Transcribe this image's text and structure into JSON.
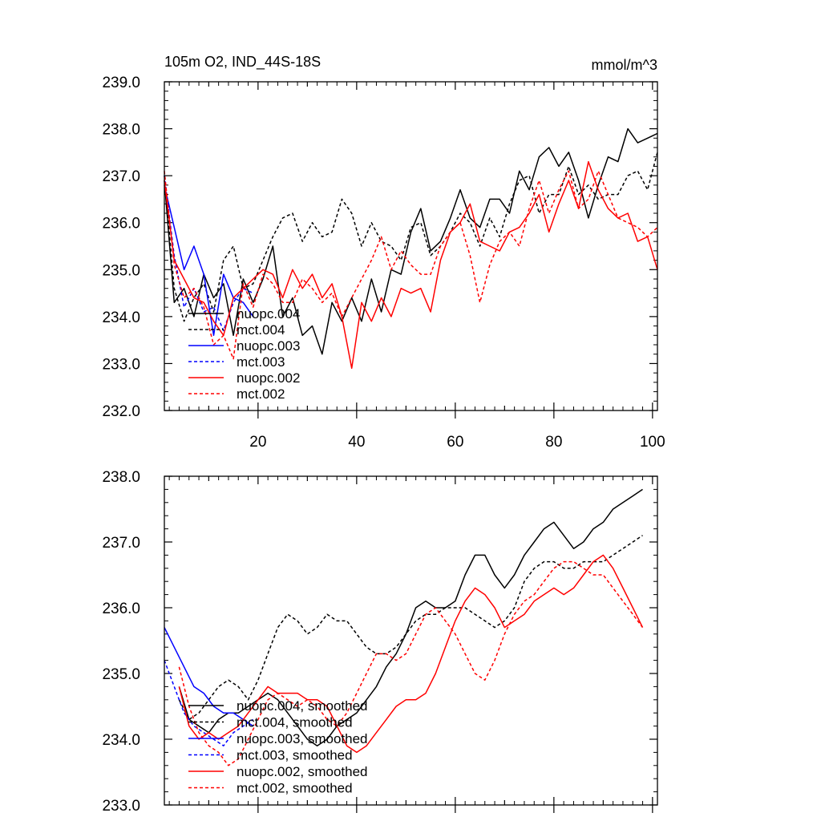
{
  "chart_data": [
    {
      "type": "line",
      "title_left": "105m O2, IND_44S-18S",
      "title_right": "mmol/m^3",
      "xlabel": "",
      "ylabel": "",
      "xlim": [
        1,
        101
      ],
      "ylim": [
        232.0,
        239.0
      ],
      "xticks": [
        20,
        40,
        60,
        80,
        100
      ],
      "xtick_labels": [
        "20",
        "40",
        "60",
        "80",
        "100"
      ],
      "yticks": [
        232.0,
        233.0,
        234.0,
        235.0,
        236.0,
        237.0,
        238.0,
        239.0
      ],
      "ytick_labels": [
        "232.0",
        "233.0",
        "234.0",
        "235.0",
        "236.0",
        "237.0",
        "238.0",
        "239.0"
      ],
      "legend_position": "lower-left",
      "series": [
        {
          "name": "nuopc.004",
          "color": "#000000",
          "dash": "solid",
          "x": [
            1,
            3,
            5,
            7,
            9,
            11,
            13,
            15,
            17,
            19,
            21,
            23,
            25,
            27,
            29,
            31,
            33,
            35,
            37,
            39,
            41,
            43,
            45,
            47,
            49,
            51,
            53,
            55,
            57,
            59,
            61,
            63,
            65,
            67,
            69,
            71,
            73,
            75,
            77,
            79,
            81,
            83,
            85,
            87,
            89,
            91,
            93,
            95,
            97,
            99,
            101
          ],
          "y": [
            236.9,
            234.3,
            234.6,
            234.0,
            234.9,
            234.4,
            234.7,
            233.6,
            234.8,
            234.3,
            234.8,
            235.5,
            234.0,
            234.4,
            233.6,
            233.8,
            233.2,
            234.3,
            233.9,
            234.4,
            233.9,
            234.8,
            234.1,
            235.0,
            234.9,
            235.8,
            236.3,
            235.4,
            235.6,
            236.1,
            236.7,
            236.1,
            235.9,
            236.5,
            236.5,
            236.2,
            237.1,
            236.7,
            237.4,
            237.6,
            237.2,
            237.5,
            236.9,
            236.1,
            236.8,
            237.4,
            237.3,
            238.0,
            237.7,
            237.8,
            237.9
          ]
        },
        {
          "name": "mct.004",
          "color": "#000000",
          "dash": "dashed",
          "x": [
            1,
            3,
            5,
            7,
            9,
            11,
            13,
            15,
            17,
            19,
            21,
            23,
            25,
            27,
            29,
            31,
            33,
            35,
            37,
            39,
            41,
            43,
            45,
            47,
            49,
            51,
            53,
            55,
            57,
            59,
            61,
            63,
            65,
            67,
            69,
            71,
            73,
            75,
            77,
            79,
            81,
            83,
            85,
            87,
            89,
            91,
            93,
            95,
            97,
            99,
            101
          ],
          "y": [
            237.0,
            234.6,
            233.9,
            234.4,
            234.7,
            234.1,
            235.2,
            235.5,
            234.6,
            234.7,
            235.2,
            235.7,
            236.1,
            236.2,
            235.6,
            236.0,
            235.7,
            235.8,
            236.5,
            236.2,
            235.5,
            236.0,
            235.6,
            235.5,
            235.2,
            235.9,
            236.0,
            235.3,
            235.5,
            235.8,
            236.2,
            236.0,
            235.5,
            236.1,
            235.7,
            236.4,
            236.9,
            237.0,
            236.2,
            236.6,
            236.6,
            237.2,
            236.6,
            236.8,
            236.5,
            236.6,
            236.6,
            237.0,
            237.1,
            236.7,
            237.5
          ]
        },
        {
          "name": "nuopc.003",
          "color": "#0000ff",
          "dash": "solid",
          "x": [
            1,
            3,
            5,
            7,
            9,
            11,
            13,
            15,
            17,
            19
          ],
          "y": [
            236.8,
            235.9,
            235.0,
            235.5,
            234.9,
            233.6,
            234.9,
            234.4,
            234.3,
            234.0
          ]
        },
        {
          "name": "mct.003",
          "color": "#0000ff",
          "dash": "dashed",
          "x": [
            1,
            3,
            5,
            7,
            9,
            11,
            13,
            15,
            17,
            19
          ],
          "y": [
            237.0,
            235.3,
            234.2,
            234.6,
            234.1,
            234.2,
            233.7,
            234.3,
            234.6,
            234.5
          ]
        },
        {
          "name": "nuopc.002",
          "color": "#ff0000",
          "dash": "solid",
          "x": [
            1,
            3,
            5,
            7,
            9,
            11,
            13,
            15,
            17,
            19,
            21,
            23,
            25,
            27,
            29,
            31,
            33,
            35,
            37,
            39,
            41,
            43,
            45,
            47,
            49,
            51,
            53,
            55,
            57,
            59,
            61,
            63,
            65,
            67,
            69,
            71,
            73,
            75,
            77,
            79,
            81,
            83,
            85,
            87,
            89,
            91,
            93,
            95,
            97,
            99,
            101
          ],
          "y": [
            236.9,
            235.2,
            234.8,
            234.4,
            234.3,
            233.9,
            233.6,
            234.4,
            234.6,
            234.8,
            235.0,
            234.9,
            234.4,
            235.0,
            234.6,
            234.9,
            234.4,
            234.7,
            234.0,
            232.9,
            234.3,
            233.9,
            234.4,
            234.0,
            234.6,
            234.5,
            234.6,
            234.1,
            235.2,
            235.8,
            236.0,
            236.4,
            235.6,
            235.5,
            235.4,
            235.8,
            235.9,
            236.2,
            236.6,
            235.8,
            236.4,
            236.9,
            236.3,
            237.3,
            236.7,
            236.3,
            236.1,
            236.2,
            235.6,
            235.7,
            235.0
          ]
        },
        {
          "name": "mct.002",
          "color": "#ff0000",
          "dash": "dashed",
          "x": [
            1,
            3,
            5,
            7,
            9,
            11,
            13,
            15,
            17,
            19,
            21,
            23,
            25,
            27,
            29,
            31,
            33,
            35,
            37,
            39,
            41,
            43,
            45,
            47,
            49,
            51,
            53,
            55,
            57,
            59,
            61,
            63,
            65,
            67,
            69,
            71,
            73,
            75,
            77,
            79,
            81,
            83,
            85,
            87,
            89,
            91,
            93,
            95,
            97,
            99,
            101
          ],
          "y": [
            237.1,
            235.1,
            234.4,
            234.6,
            234.2,
            233.4,
            233.6,
            233.1,
            234.7,
            234.2,
            234.9,
            234.7,
            234.3,
            234.3,
            234.8,
            234.6,
            234.3,
            234.5,
            234.0,
            234.4,
            234.8,
            235.2,
            235.7,
            235.0,
            235.4,
            235.1,
            234.9,
            234.9,
            235.5,
            235.8,
            236.0,
            235.3,
            234.3,
            235.1,
            235.6,
            235.8,
            235.5,
            236.3,
            236.9,
            236.2,
            236.7,
            237.1,
            236.3,
            236.5,
            237.1,
            236.6,
            236.1,
            236.0,
            235.9,
            235.7,
            235.9
          ]
        }
      ]
    },
    {
      "type": "line",
      "xlabel": "",
      "ylabel": "",
      "xlim": [
        1,
        101
      ],
      "ylim": [
        233.0,
        238.0
      ],
      "xticks": [
        20,
        40,
        60,
        80,
        100
      ],
      "yticks": [
        233.0,
        234.0,
        235.0,
        236.0,
        237.0,
        238.0
      ],
      "ytick_labels": [
        "233.0",
        "234.0",
        "235.0",
        "236.0",
        "237.0",
        "238.0"
      ],
      "legend_position": "lower-left",
      "series": [
        {
          "name": "nuopc.004, smoothed",
          "color": "#000000",
          "dash": "solid",
          "x": [
            4,
            6,
            8,
            10,
            12,
            14,
            16,
            18,
            20,
            22,
            24,
            26,
            28,
            30,
            32,
            34,
            36,
            38,
            40,
            42,
            44,
            46,
            48,
            50,
            52,
            54,
            56,
            58,
            60,
            62,
            64,
            66,
            68,
            70,
            72,
            74,
            76,
            78,
            80,
            82,
            84,
            86,
            88,
            90,
            92,
            94,
            96,
            98
          ],
          "y": [
            234.8,
            234.3,
            234.2,
            234.1,
            234.3,
            234.4,
            234.4,
            234.5,
            234.6,
            234.7,
            234.6,
            234.4,
            234.2,
            234.0,
            233.9,
            234.0,
            234.2,
            234.3,
            234.4,
            234.6,
            234.8,
            235.1,
            235.3,
            235.6,
            236.0,
            236.1,
            236.0,
            236.0,
            236.1,
            236.5,
            236.8,
            236.8,
            236.5,
            236.3,
            236.5,
            236.8,
            237.0,
            237.2,
            237.3,
            237.1,
            236.9,
            237.0,
            237.2,
            237.3,
            237.5,
            237.6,
            237.7,
            237.8
          ]
        },
        {
          "name": "mct.004, smoothed",
          "color": "#000000",
          "dash": "dashed",
          "x": [
            4,
            6,
            8,
            10,
            12,
            14,
            16,
            18,
            20,
            22,
            24,
            26,
            28,
            30,
            32,
            34,
            36,
            38,
            40,
            42,
            44,
            46,
            48,
            50,
            52,
            54,
            56,
            58,
            60,
            62,
            64,
            66,
            68,
            70,
            72,
            74,
            76,
            78,
            80,
            82,
            84,
            86,
            88,
            90,
            92,
            94,
            96,
            98
          ],
          "y": [
            234.6,
            234.3,
            234.4,
            234.6,
            234.8,
            234.9,
            234.8,
            234.6,
            234.9,
            235.3,
            235.7,
            235.9,
            235.8,
            235.6,
            235.7,
            235.9,
            235.8,
            235.8,
            235.6,
            235.4,
            235.3,
            235.3,
            235.4,
            235.6,
            235.8,
            235.9,
            235.9,
            236.0,
            236.0,
            236.0,
            235.9,
            235.8,
            235.7,
            235.8,
            236.0,
            236.4,
            236.6,
            236.7,
            236.7,
            236.6,
            236.6,
            236.7,
            236.7,
            236.7,
            236.8,
            236.9,
            237.0,
            237.1
          ]
        },
        {
          "name": "nuopc.003, smoothed",
          "color": "#0000ff",
          "dash": "solid",
          "x": [
            1,
            3,
            5,
            7,
            9,
            11,
            13,
            15,
            17,
            19
          ],
          "y": [
            235.7,
            235.4,
            235.1,
            234.8,
            234.7,
            234.5,
            234.4,
            234.4,
            234.3,
            234.2
          ]
        },
        {
          "name": "mct.003, smoothed",
          "color": "#0000ff",
          "dash": "dashed",
          "x": [
            1,
            3,
            5,
            7,
            9,
            11,
            13,
            15,
            17,
            19
          ],
          "y": [
            235.2,
            234.8,
            234.4,
            234.2,
            234.1,
            234.0,
            233.9,
            234.1,
            234.2,
            234.3
          ]
        },
        {
          "name": "nuopc.002, smoothed",
          "color": "#ff0000",
          "dash": "solid",
          "x": [
            4,
            6,
            8,
            10,
            12,
            14,
            16,
            18,
            20,
            22,
            24,
            26,
            28,
            30,
            32,
            34,
            36,
            38,
            40,
            42,
            44,
            46,
            48,
            50,
            52,
            54,
            56,
            58,
            60,
            62,
            64,
            66,
            68,
            70,
            72,
            74,
            76,
            78,
            80,
            82,
            84,
            86,
            88,
            90,
            92,
            94,
            96,
            98
          ],
          "y": [
            234.8,
            234.2,
            234.0,
            234.1,
            234.0,
            234.1,
            234.2,
            234.4,
            234.6,
            234.8,
            234.7,
            234.7,
            234.7,
            234.6,
            234.6,
            234.5,
            234.2,
            233.9,
            233.8,
            233.9,
            234.1,
            234.3,
            234.5,
            234.6,
            234.6,
            234.7,
            235.0,
            235.4,
            235.8,
            236.1,
            236.3,
            236.2,
            236.0,
            235.7,
            235.8,
            235.9,
            236.1,
            236.2,
            236.3,
            236.2,
            236.3,
            236.5,
            236.7,
            236.8,
            236.6,
            236.3,
            236.0,
            235.7
          ]
        },
        {
          "name": "mct.002, smoothed",
          "color": "#ff0000",
          "dash": "dashed",
          "x": [
            4,
            6,
            8,
            10,
            12,
            14,
            16,
            18,
            20,
            22,
            24,
            26,
            28,
            30,
            32,
            34,
            36,
            38,
            40,
            42,
            44,
            46,
            48,
            50,
            52,
            54,
            56,
            58,
            60,
            62,
            64,
            66,
            68,
            70,
            72,
            74,
            76,
            78,
            80,
            82,
            84,
            86,
            88,
            90,
            92,
            94,
            96,
            98
          ],
          "y": [
            235.1,
            234.5,
            234.1,
            233.9,
            233.8,
            233.6,
            233.7,
            234.0,
            234.3,
            234.6,
            234.7,
            234.6,
            234.5,
            234.6,
            234.5,
            234.3,
            234.2,
            234.4,
            234.7,
            235.0,
            235.3,
            235.3,
            235.2,
            235.3,
            235.6,
            235.9,
            236.0,
            235.8,
            235.6,
            235.3,
            235.0,
            234.9,
            235.2,
            235.6,
            235.9,
            236.1,
            236.2,
            236.4,
            236.6,
            236.7,
            236.7,
            236.6,
            236.5,
            236.5,
            236.3,
            236.1,
            235.9,
            235.7
          ]
        }
      ]
    }
  ]
}
